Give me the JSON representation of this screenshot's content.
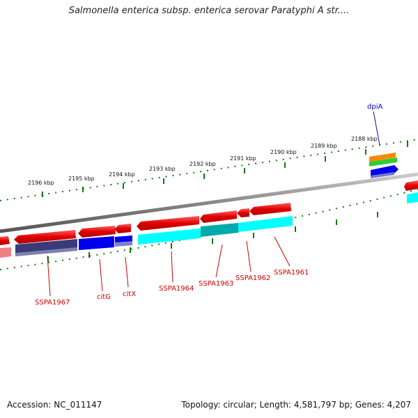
{
  "title": "Salmonella enterica subsp. enterica serovar Paratyphi A str....",
  "footer": {
    "accession": "Accession: NC_011147",
    "summary": "Topology: circular; Length: 4,581,797 bp; Genes: 4,207"
  },
  "ruler": {
    "labels": [
      "2196 kbp",
      "2195 kbp",
      "2194 kbp",
      "2193 kbp",
      "2192 kbp",
      "2191 kbp",
      "2190 kbp",
      "2189 kbp",
      "2188 kbp"
    ]
  },
  "genes": {
    "labels_bottom": [
      "SSPA1967",
      "citG",
      "citX",
      "SSPA1964",
      "SSPA1963",
      "SSPA1962",
      "SSPA1961"
    ],
    "labels_top": [
      "dpiA"
    ]
  },
  "colors": {
    "cds_forward": "#e00000",
    "cds_reverse_light": "#f08080",
    "cog_navy": "#3a3a7a",
    "cog_blue": "#0000ee",
    "cog_cyan": "#00ffff",
    "cog_teal": "#00aaaa",
    "cog_orange": "#ff8800",
    "cog_green": "#33cc33",
    "backbone": "#888888",
    "tick": "#117711",
    "leader_red": "#cc0000",
    "leader_blue": "#0000cc"
  },
  "icons": [
    "gene-arrow-icon"
  ]
}
